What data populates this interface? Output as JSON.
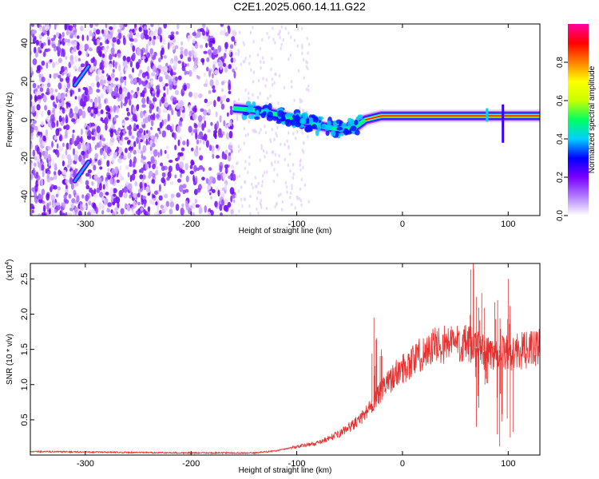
{
  "title": "C2E1.2025.060.14.11.G22",
  "chart_data": [
    {
      "type": "heatmap",
      "xlabel": "Height of straight line (km)",
      "ylabel": "Frequency (Hz)",
      "xlim": [
        -352,
        130
      ],
      "ylim": [
        -50,
        50
      ],
      "xticks": [
        -300,
        -200,
        -100,
        0,
        100
      ],
      "yticks": [
        -40,
        -20,
        0,
        20,
        40
      ],
      "colorbar": {
        "label": "Normalized spectral amplitude",
        "range": [
          0.0,
          1.0
        ],
        "ticks": [
          "0.0",
          "0.2",
          "0.4",
          "0.6",
          "0.8"
        ],
        "colormap": [
          "#ffffff",
          "#b07cff",
          "#7a00ff",
          "#0000ff",
          "#00d0ff",
          "#00ff60",
          "#c8ff00",
          "#ffff00",
          "#ff8000",
          "#ff0000",
          "#ff00a0"
        ]
      },
      "ridge": [
        {
          "x": -160,
          "y": 6
        },
        {
          "x": -140,
          "y": 5
        },
        {
          "x": -120,
          "y": 3
        },
        {
          "x": -100,
          "y": 0
        },
        {
          "x": -80,
          "y": -3
        },
        {
          "x": -60,
          "y": -5
        },
        {
          "x": -45,
          "y": -4
        },
        {
          "x": -35,
          "y": 0
        },
        {
          "x": -20,
          "y": 2
        },
        {
          "x": 0,
          "y": 2
        },
        {
          "x": 30,
          "y": 2
        },
        {
          "x": 60,
          "y": 2
        },
        {
          "x": 90,
          "y": 2
        },
        {
          "x": 130,
          "y": 2
        }
      ],
      "streaks": [
        {
          "x": [
            -310,
            -297
          ],
          "y": [
            18,
            28
          ]
        },
        {
          "x": [
            -310,
            -297
          ],
          "y": [
            -32,
            -22
          ]
        }
      ]
    },
    {
      "type": "line",
      "xlabel": "Height of straight line (km)",
      "ylabel": "SNR (10 * v/v)",
      "yscale_label": "(x10",
      "yscale_exp": "4",
      "xlim": [
        -352,
        130
      ],
      "ylim": [
        0,
        2.72
      ],
      "xticks": [
        -300,
        -200,
        -100,
        0,
        100
      ],
      "yticks": [
        "0.5",
        "1.0",
        "1.5",
        "2.0",
        "2.5"
      ],
      "ytick_values": [
        0.5,
        1.0,
        1.5,
        2.0,
        2.5
      ],
      "color": "#e8302e",
      "envelope": [
        {
          "x": -352,
          "y": 0.05
        },
        {
          "x": -200,
          "y": 0.03
        },
        {
          "x": -140,
          "y": 0.03
        },
        {
          "x": -120,
          "y": 0.06
        },
        {
          "x": -100,
          "y": 0.12
        },
        {
          "x": -80,
          "y": 0.17
        },
        {
          "x": -60,
          "y": 0.3
        },
        {
          "x": -40,
          "y": 0.5
        },
        {
          "x": -25,
          "y": 0.8
        },
        {
          "x": -10,
          "y": 1.1
        },
        {
          "x": 10,
          "y": 1.35
        },
        {
          "x": 30,
          "y": 1.55
        },
        {
          "x": 50,
          "y": 1.6
        },
        {
          "x": 65,
          "y": 1.55
        },
        {
          "x": 80,
          "y": 1.45
        },
        {
          "x": 100,
          "y": 1.45
        },
        {
          "x": 130,
          "y": 1.52
        }
      ],
      "spikes": [
        {
          "x": -27,
          "y": 1.95
        },
        {
          "x": -20,
          "y": 1.5
        },
        {
          "x": 67,
          "y": 2.72
        },
        {
          "x": 70,
          "y": 0.4
        },
        {
          "x": 75,
          "y": 2.3
        },
        {
          "x": 78,
          "y": 1.0
        },
        {
          "x": 90,
          "y": 2.2
        },
        {
          "x": 92,
          "y": 0.12
        },
        {
          "x": 100,
          "y": 2.5
        },
        {
          "x": 102,
          "y": 0.25
        }
      ]
    }
  ]
}
